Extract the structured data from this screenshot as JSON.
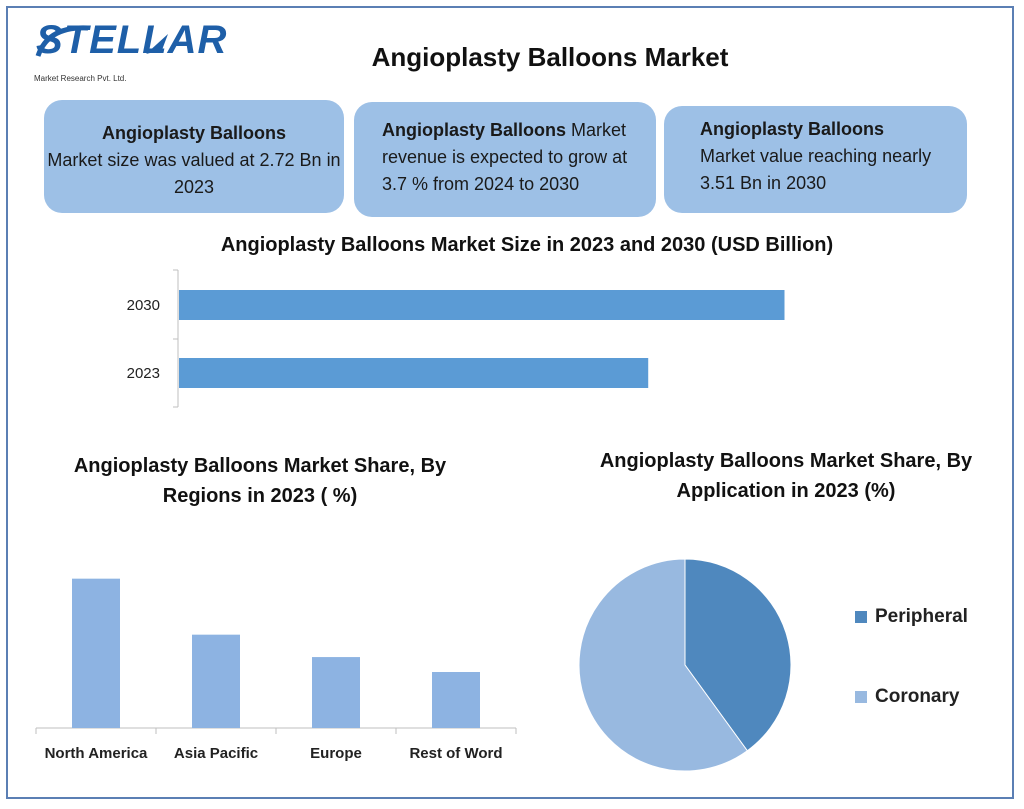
{
  "brand": {
    "name": "STELLAR",
    "tagline": "Market Research Pvt. Ltd."
  },
  "title": "Angioplasty Balloons Market",
  "cards": [
    {
      "bold": "Angioplasty Balloons",
      "text": "Market size was valued at 2.72 Bn in 2023"
    },
    {
      "bold": "Angioplasty Balloons",
      "text": " Market revenue is expected to grow at 3.7 % from 2024 to 2030"
    },
    {
      "bold": "Angioplasty Balloons",
      "text": "Market value reaching nearly 3.51 Bn in 2030"
    }
  ],
  "chart_data": [
    {
      "type": "bar",
      "orientation": "horizontal",
      "title": "Angioplasty Balloons Market Size in 2023 and 2030 (USD Billion)",
      "categories": [
        "2030",
        "2023"
      ],
      "values": [
        3.51,
        2.72
      ],
      "color": "#5b9bd5"
    },
    {
      "type": "bar",
      "title": "Angioplasty Balloons Market Share, By Regions in 2023 ( %)",
      "categories": [
        "North America",
        "Asia Pacific",
        "Europe",
        "Rest of Word"
      ],
      "values": [
        40,
        25,
        19,
        15
      ],
      "ylim": [
        0,
        45
      ],
      "color": "#8db3e2"
    },
    {
      "type": "pie",
      "title": "Angioplasty Balloons Market Share, By Application in 2023 (%)",
      "labels": [
        "Peripheral",
        "Coronary"
      ],
      "values": [
        40,
        60
      ],
      "colors": [
        "#4f88be",
        "#98b9e0"
      ],
      "legend": "right"
    }
  ]
}
